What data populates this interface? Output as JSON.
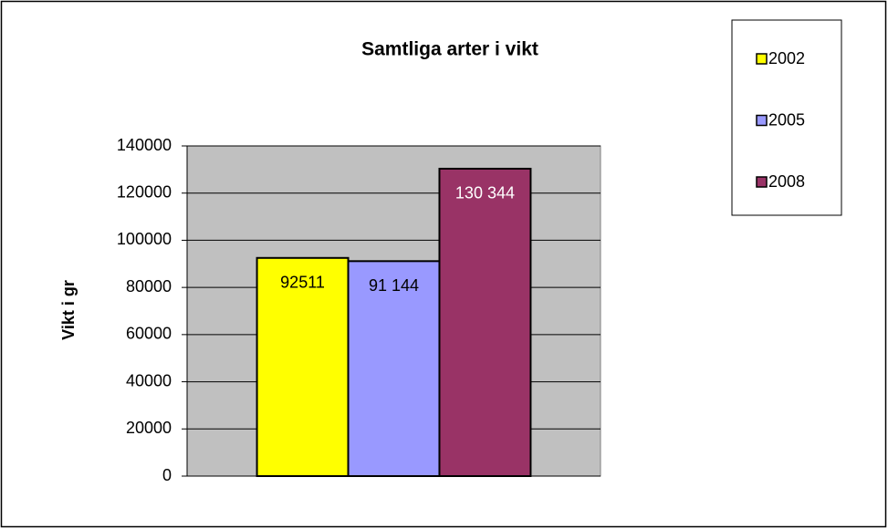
{
  "chart_data": {
    "type": "bar",
    "title": "Samtliga arter i vikt",
    "y_label": "Vikt i gr",
    "categories": [
      null
    ],
    "series": [
      {
        "name": "2002",
        "color": "#ffff00",
        "label_color": "#000000",
        "values": [
          92511
        ]
      },
      {
        "name": "2005",
        "color": "#9999ff",
        "label_color": "#000000",
        "values": [
          91144
        ],
        "value_labels": [
          "91 144"
        ]
      },
      {
        "name": "2008",
        "color": "#993366",
        "label_color": "#ffffff",
        "values": [
          130344
        ],
        "value_labels": [
          "130 344"
        ]
      }
    ],
    "ylim": [
      0,
      140000
    ],
    "yticks": [
      0,
      20000,
      40000,
      60000,
      80000,
      100000,
      120000,
      140000
    ],
    "grid": true,
    "plot_background": "#c0c0c0",
    "legend": "right"
  }
}
